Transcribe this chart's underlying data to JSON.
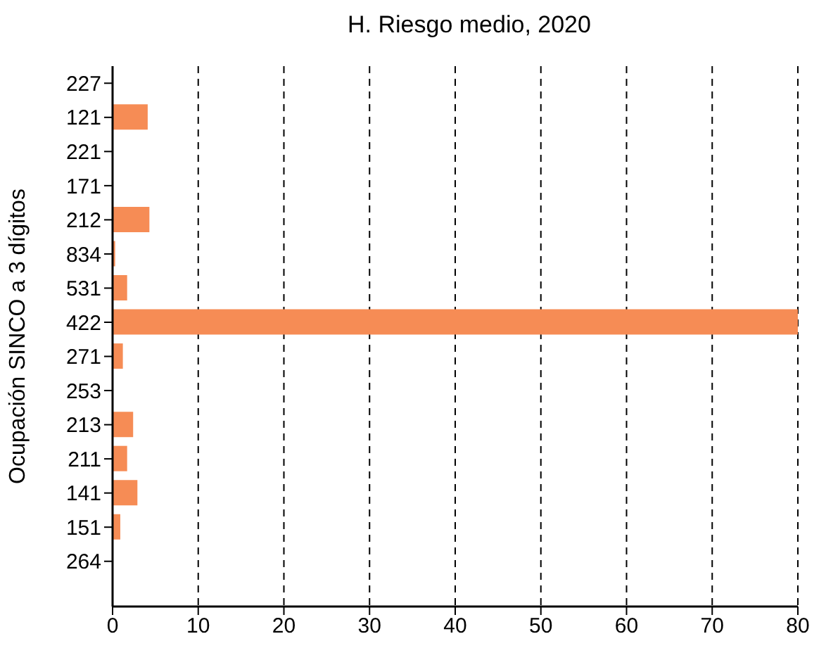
{
  "chart_data": {
    "type": "bar",
    "orientation": "horizontal",
    "title": "H. Riesgo medio, 2020",
    "ylabel": "Ocupación SINCO a 3 dígitos",
    "categories": [
      "227",
      "121",
      "221",
      "171",
      "212",
      "834",
      "531",
      "422",
      "271",
      "253",
      "213",
      "211",
      "141",
      "151",
      "264"
    ],
    "values": [
      0,
      4.1,
      0,
      0,
      4.3,
      0.3,
      1.7,
      80,
      1.2,
      0,
      2.4,
      1.7,
      2.9,
      0.9,
      0
    ],
    "color": "#f68c55",
    "xlim": [
      0,
      80
    ],
    "xticks": [
      0,
      10,
      20,
      30,
      40,
      50,
      60,
      70,
      80
    ],
    "grid": "x"
  }
}
